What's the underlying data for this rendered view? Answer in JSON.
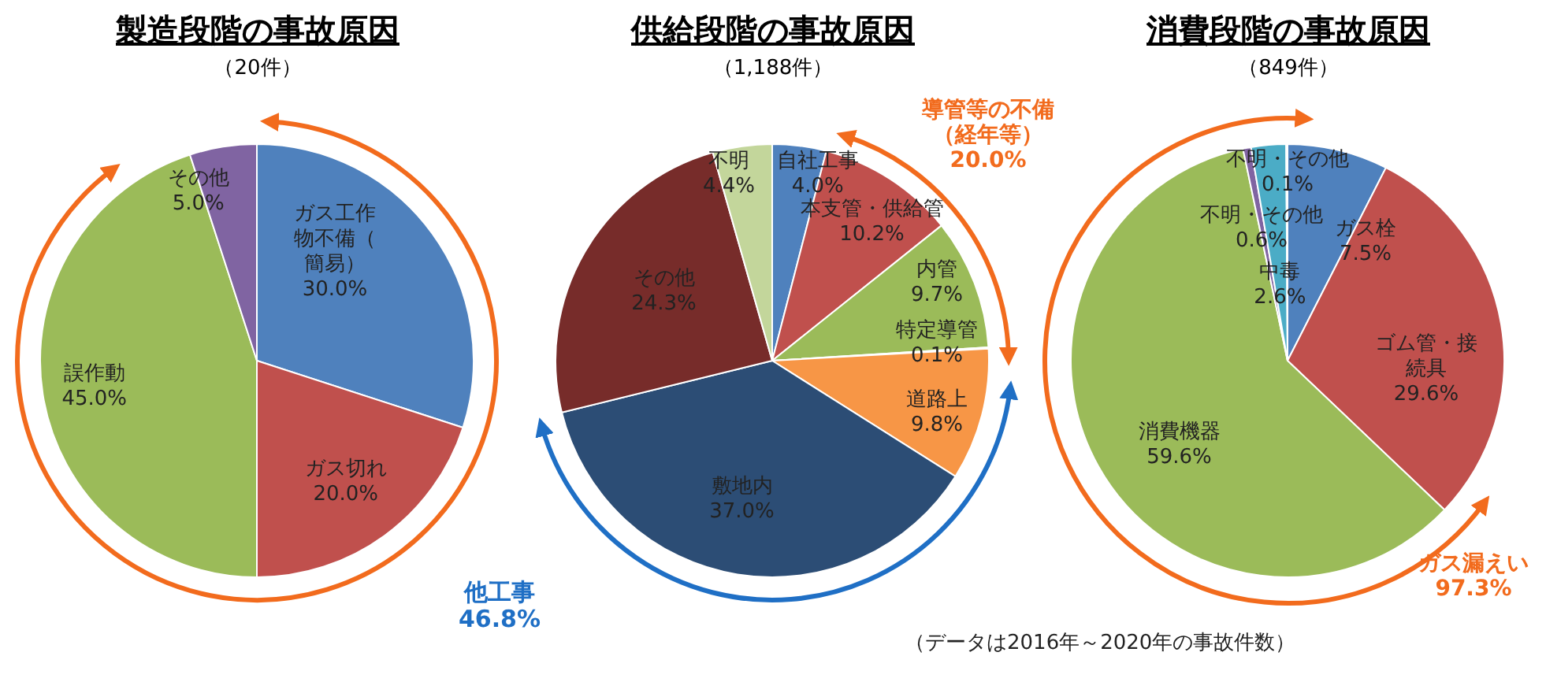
{
  "chart_data": [
    {
      "type": "pie",
      "title": "製造段階の事故原因",
      "subtitle": "（20件）",
      "categories": [
        "ガス工作物不備（簡易）",
        "ガス切れ",
        "誤作動",
        "その他"
      ],
      "values": [
        30.0,
        20.0,
        45.0,
        5.0
      ],
      "value_labels": [
        "30.0%",
        "20.0%",
        "45.0%",
        "5.0%"
      ],
      "colors": [
        "#4f81bd",
        "#c0504d",
        "#9bbb59",
        "#8064a2"
      ],
      "legend": false
    },
    {
      "type": "pie",
      "title": "供給段階の事故原因",
      "subtitle": "（1,188件）",
      "categories": [
        "自社工事",
        "本支管・供給管",
        "内管",
        "特定導管",
        "道路上",
        "敷地内",
        "その他",
        "不明"
      ],
      "values": [
        4.0,
        10.2,
        9.7,
        0.1,
        9.8,
        37.0,
        24.3,
        4.4
      ],
      "value_labels": [
        "4.0%",
        "10.2%",
        "9.7%",
        "0.1%",
        "9.8%",
        "37.0%",
        "24.3%",
        "4.4%"
      ],
      "colors": [
        "#4f81bd",
        "#c0504d",
        "#9bbb59",
        "#8064a2",
        "#f79646",
        "#2c4d75",
        "#772c2a",
        "#c3d69b"
      ],
      "legend": false,
      "annotations": [
        "導管等の不備（経年等）\n20.0%",
        "他工事\n46.8%"
      ]
    },
    {
      "type": "pie",
      "title": "消費段階の事故原因",
      "subtitle": "（849件）",
      "categories": [
        "ガス栓",
        "ゴム管・接続具",
        "消費機器",
        "不明・その他",
        "中毒",
        "不明・その他"
      ],
      "values": [
        7.5,
        29.6,
        59.6,
        0.6,
        2.6,
        0.1
      ],
      "value_labels": [
        "7.5%",
        "29.6%",
        "59.6%",
        "0.6%",
        "2.6%",
        "0.1%"
      ],
      "colors": [
        "#4f81bd",
        "#c0504d",
        "#9bbb59",
        "#8064a2",
        "#4bacc6",
        "#f79646"
      ],
      "legend": false,
      "annotations": [
        "ガス漏えい\n97.3%",
        "（データは2016年～2020年の事故件数）"
      ]
    }
  ]
}
